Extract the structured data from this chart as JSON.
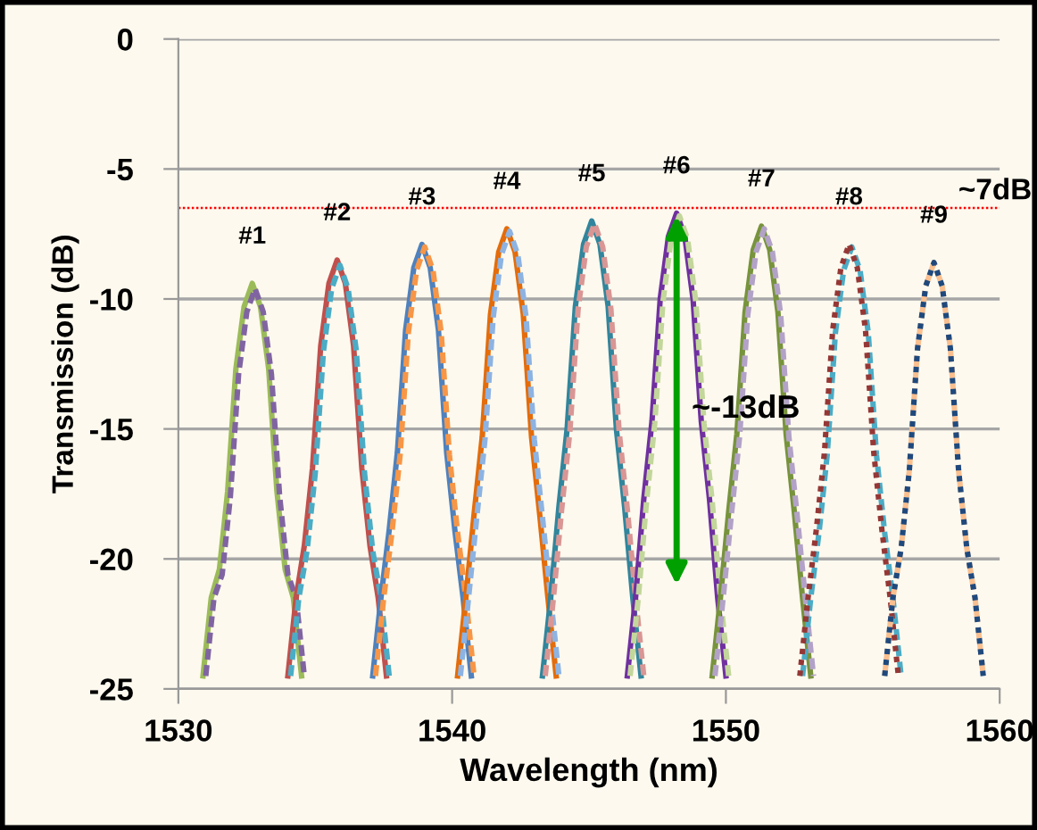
{
  "chart_data": {
    "type": "line",
    "xlabel": "Wavelength (nm)",
    "ylabel": "Transmission (dB)",
    "xlim": [
      1530,
      1560
    ],
    "xticks": [
      1530,
      1540,
      1550,
      1560
    ],
    "ylim": [
      -25,
      0
    ],
    "yticks": [
      0,
      -5,
      -10,
      -15,
      -20,
      -25
    ],
    "grid": "y",
    "series": [
      {
        "color": "#9bbb59",
        "line_style": "solid",
        "x": [
          1530.9,
          1531.2,
          1531.5,
          1531.8,
          1532.1,
          1532.4,
          1532.7,
          1533.0,
          1533.3,
          1533.6,
          1533.9,
          1534.2,
          1534.5
        ],
        "values": [
          -24.5,
          -21.5,
          -20.4,
          -17.4,
          -12.7,
          -10.3,
          -9.4,
          -10.3,
          -12.7,
          -17.4,
          -20.4,
          -21.5,
          -24.5
        ]
      },
      {
        "color": "#8064a2",
        "line_style": "dashed",
        "x": [
          1531.0,
          1531.3,
          1531.6,
          1531.9,
          1532.2,
          1532.5,
          1532.8,
          1533.1,
          1533.4,
          1533.7,
          1534.0,
          1534.3,
          1534.6
        ],
        "values": [
          -24.5,
          -21.5,
          -20.6,
          -17.6,
          -12.9,
          -10.5,
          -9.6,
          -10.5,
          -12.9,
          -17.6,
          -20.6,
          -21.5,
          -24.5
        ]
      },
      {
        "color": "#c0504d",
        "line_style": "solid",
        "x": [
          1534.0,
          1534.3,
          1534.6,
          1534.9,
          1535.2,
          1535.5,
          1535.8,
          1536.1,
          1536.4,
          1536.7,
          1537.0,
          1537.3,
          1537.6
        ],
        "values": [
          -24.5,
          -21.5,
          -19.5,
          -16.5,
          -11.8,
          -9.4,
          -8.5,
          -9.4,
          -11.8,
          -16.5,
          -19.5,
          -21.5,
          -24.5
        ]
      },
      {
        "color": "#4bacc6",
        "line_style": "dashed",
        "x": [
          1534.1,
          1534.4,
          1534.7,
          1535.0,
          1535.3,
          1535.6,
          1535.9,
          1536.2,
          1536.5,
          1536.8,
          1537.1,
          1537.4,
          1537.7
        ],
        "values": [
          -24.5,
          -21.5,
          -19.7,
          -16.7,
          -12.0,
          -9.6,
          -8.7,
          -9.6,
          -12.0,
          -16.7,
          -19.7,
          -21.5,
          -24.5
        ]
      },
      {
        "color": "#4f81bd",
        "line_style": "solid",
        "x": [
          1537.1,
          1537.4,
          1537.7,
          1538.0,
          1538.3,
          1538.6,
          1538.9,
          1539.2,
          1539.5,
          1539.8,
          1540.1,
          1540.4,
          1540.7
        ],
        "values": [
          -24.5,
          -21.5,
          -18.9,
          -15.9,
          -11.2,
          -8.8,
          -7.9,
          -8.8,
          -11.2,
          -15.9,
          -18.9,
          -21.5,
          -24.5
        ]
      },
      {
        "color": "#f79646",
        "line_style": "dashed",
        "x": [
          1537.2,
          1537.5,
          1537.8,
          1538.1,
          1538.4,
          1538.7,
          1539.0,
          1539.3,
          1539.6,
          1539.9,
          1540.2,
          1540.5,
          1540.8
        ],
        "values": [
          -24.5,
          -21.5,
          -19.0,
          -16.0,
          -11.3,
          -8.9,
          -8.0,
          -8.9,
          -11.3,
          -16.0,
          -19.0,
          -21.5,
          -24.5
        ]
      },
      {
        "color": "#e46c0a",
        "line_style": "solid",
        "x": [
          1540.2,
          1540.5,
          1540.8,
          1541.1,
          1541.4,
          1541.7,
          1542.0,
          1542.3,
          1542.6,
          1542.9,
          1543.2,
          1543.5,
          1543.8
        ],
        "values": [
          -24.5,
          -21.5,
          -18.3,
          -15.3,
          -10.6,
          -8.2,
          -7.3,
          -8.2,
          -10.6,
          -15.3,
          -18.3,
          -21.5,
          -24.5
        ]
      },
      {
        "color": "#8db3e2",
        "line_style": "dashed",
        "x": [
          1540.3,
          1540.6,
          1540.9,
          1541.2,
          1541.5,
          1541.8,
          1542.1,
          1542.4,
          1542.7,
          1543.0,
          1543.3,
          1543.6,
          1543.9
        ],
        "values": [
          -24.5,
          -21.5,
          -18.4,
          -15.4,
          -10.7,
          -8.3,
          -7.4,
          -8.3,
          -10.7,
          -15.4,
          -18.4,
          -21.5,
          -24.5
        ]
      },
      {
        "color": "#31859c",
        "line_style": "solid",
        "x": [
          1543.3,
          1543.6,
          1543.9,
          1544.2,
          1544.5,
          1544.8,
          1545.1,
          1545.4,
          1545.7,
          1546.0,
          1546.3,
          1546.6,
          1546.9
        ],
        "values": [
          -24.5,
          -21.5,
          -18.0,
          -15.0,
          -10.3,
          -7.9,
          -7.0,
          -7.9,
          -10.3,
          -15.0,
          -18.0,
          -21.5,
          -24.5
        ]
      },
      {
        "color": "#d99694",
        "line_style": "dashed",
        "x": [
          1543.4,
          1543.7,
          1544.0,
          1544.3,
          1544.6,
          1544.9,
          1545.2,
          1545.5,
          1545.8,
          1546.1,
          1546.4,
          1546.7,
          1547.0
        ],
        "values": [
          -24.5,
          -21.5,
          -18.1,
          -15.1,
          -10.4,
          -8.0,
          -7.1,
          -8.0,
          -10.4,
          -15.1,
          -18.1,
          -21.5,
          -24.5
        ]
      },
      {
        "color": "#7030a0",
        "line_style": "solid",
        "x": [
          1546.4,
          1546.7,
          1547.0,
          1547.3,
          1547.6,
          1547.9,
          1548.2,
          1548.5,
          1548.8,
          1549.1,
          1549.4,
          1549.7,
          1550.0
        ],
        "values": [
          -24.5,
          -21.5,
          -17.7,
          -14.7,
          -10.0,
          -7.6,
          -6.7,
          -7.6,
          -10.0,
          -14.7,
          -17.7,
          -21.5,
          -24.5
        ]
      },
      {
        "color": "#c3d69b",
        "line_style": "dashed",
        "x": [
          1546.5,
          1546.8,
          1547.1,
          1547.4,
          1547.7,
          1548.0,
          1548.3,
          1548.6,
          1548.9,
          1549.2,
          1549.5,
          1549.8,
          1550.1
        ],
        "values": [
          -24.5,
          -21.5,
          -17.8,
          -14.8,
          -10.1,
          -7.7,
          -6.8,
          -7.7,
          -10.1,
          -14.8,
          -17.8,
          -21.5,
          -24.5
        ]
      },
      {
        "color": "#77933c",
        "line_style": "solid",
        "x": [
          1549.5,
          1549.8,
          1550.1,
          1550.4,
          1550.7,
          1551.0,
          1551.3,
          1551.6,
          1551.9,
          1552.2,
          1552.5,
          1552.8,
          1553.1
        ],
        "values": [
          -24.5,
          -21.5,
          -18.2,
          -15.2,
          -10.5,
          -8.1,
          -7.2,
          -8.1,
          -10.5,
          -15.2,
          -18.2,
          -21.5,
          -24.5
        ]
      },
      {
        "color": "#b3a2c7",
        "line_style": "dashed",
        "x": [
          1549.6,
          1549.9,
          1550.2,
          1550.5,
          1550.8,
          1551.1,
          1551.4,
          1551.7,
          1552.0,
          1552.3,
          1552.6,
          1552.9,
          1553.2
        ],
        "values": [
          -24.5,
          -21.5,
          -18.3,
          -15.3,
          -10.6,
          -8.2,
          -7.3,
          -8.2,
          -10.6,
          -15.3,
          -18.3,
          -21.5,
          -24.5
        ]
      },
      {
        "color": "#4bacc6",
        "line_style": "dashed",
        "x": [
          1552.8,
          1553.1,
          1553.4,
          1553.7,
          1554.0,
          1554.3,
          1554.6,
          1554.9,
          1555.2,
          1555.5,
          1555.8,
          1556.1,
          1556.4
        ],
        "values": [
          -24.5,
          -21.5,
          -19.0,
          -16.0,
          -11.3,
          -8.9,
          -8.0,
          -8.9,
          -11.3,
          -16.0,
          -19.0,
          -21.5,
          -24.5
        ]
      },
      {
        "color": "#953735",
        "line_style": "dotted",
        "x": [
          1552.7,
          1553.0,
          1553.3,
          1553.6,
          1553.9,
          1554.2,
          1554.5,
          1554.8,
          1555.1,
          1555.4,
          1555.7,
          1556.0,
          1556.3
        ],
        "values": [
          -24.5,
          -21.5,
          -18.9,
          -15.9,
          -11.2,
          -8.8,
          -7.9,
          -8.8,
          -11.2,
          -15.9,
          -18.9,
          -21.5,
          -24.5
        ]
      },
      {
        "color": "#fabf8f",
        "line_style": "dashed",
        "x": [
          1555.8,
          1556.1,
          1556.4,
          1556.7,
          1557.0,
          1557.3,
          1557.6,
          1557.9,
          1558.2,
          1558.5,
          1558.8,
          1559.1,
          1559.4
        ],
        "values": [
          -24.5,
          -21.5,
          -19.6,
          -16.6,
          -11.9,
          -9.5,
          -8.6,
          -9.5,
          -11.9,
          -16.6,
          -19.6,
          -21.5,
          -24.5
        ]
      },
      {
        "color": "#1f497d",
        "line_style": "dotted",
        "x": [
          1555.8,
          1556.1,
          1556.4,
          1556.7,
          1557.0,
          1557.3,
          1557.6,
          1557.9,
          1558.2,
          1558.5,
          1558.8,
          1559.1,
          1559.4
        ],
        "values": [
          -24.5,
          -21.5,
          -19.6,
          -16.6,
          -11.9,
          -9.5,
          -8.6,
          -9.5,
          -11.9,
          -16.6,
          -19.6,
          -21.5,
          -24.5
        ]
      }
    ],
    "ref_lines": [
      {
        "axis": "y",
        "value": -6.5,
        "label": "~7dB",
        "color": "#ff0000",
        "line_style": "dotted"
      }
    ],
    "annotations": [
      {
        "text": "#1",
        "x": 1532.7,
        "y": -9.4
      },
      {
        "text": "#2",
        "x": 1535.8,
        "y": -8.5
      },
      {
        "text": "#3",
        "x": 1538.9,
        "y": -7.9
      },
      {
        "text": "#4",
        "x": 1542.0,
        "y": -7.3
      },
      {
        "text": "#5",
        "x": 1545.1,
        "y": -7.0
      },
      {
        "text": "#6",
        "x": 1548.2,
        "y": -6.7
      },
      {
        "text": "#7",
        "x": 1551.3,
        "y": -7.2
      },
      {
        "text": "#8",
        "x": 1554.5,
        "y": -7.9
      },
      {
        "text": "#9",
        "x": 1557.6,
        "y": -8.6
      },
      "~-13dB"
    ]
  }
}
